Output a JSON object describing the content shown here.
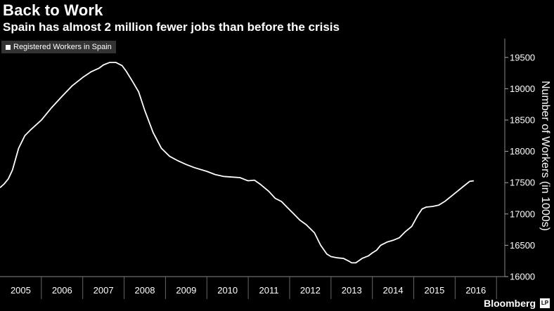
{
  "header": {
    "title": "Back to Work",
    "subtitle": "Spain has almost 2 million fewer jobs than before the crisis"
  },
  "brand": {
    "name": "Bloomberg",
    "mark": "LP"
  },
  "colors": {
    "background": "#000000",
    "line": "#ffffff",
    "legend_bg": "#333333",
    "grid": "#444444"
  },
  "chart_data": {
    "type": "line",
    "title": "Back to Work",
    "subtitle": "Spain has almost 2 million fewer jobs than before the crisis",
    "ylabel": "Number of Workers (in 1000s)",
    "xlabel": "",
    "ylim": [
      16000,
      19800
    ],
    "xlim": [
      2005.0,
      2017.2
    ],
    "yticks": [
      16000,
      16500,
      17000,
      17500,
      18000,
      18500,
      19000,
      19500
    ],
    "xtick_labels": [
      "2005",
      "2006",
      "2007",
      "2008",
      "2009",
      "2010",
      "2011",
      "2012",
      "2013",
      "2014",
      "2015",
      "2016"
    ],
    "legend": {
      "position": "top-left",
      "entries": [
        "Registered Workers in Spain"
      ]
    },
    "grid": false,
    "series": [
      {
        "name": "Registered Workers in Spain",
        "x": [
          2005.0,
          2005.1,
          2005.2,
          2005.3,
          2005.45,
          2005.6,
          2005.75,
          2006.0,
          2006.25,
          2006.5,
          2006.75,
          2007.0,
          2007.2,
          2007.4,
          2007.5,
          2007.65,
          2007.8,
          2007.95,
          2008.05,
          2008.2,
          2008.35,
          2008.5,
          2008.7,
          2008.9,
          2009.1,
          2009.3,
          2009.5,
          2009.7,
          2010.0,
          2010.2,
          2010.4,
          2010.6,
          2010.8,
          2010.95,
          2011.0,
          2011.15,
          2011.3,
          2011.5,
          2011.65,
          2011.8,
          2011.95,
          2012.1,
          2012.25,
          2012.4,
          2012.6,
          2012.75,
          2012.9,
          2013.0,
          2013.15,
          2013.3,
          2013.45,
          2013.5,
          2013.6,
          2013.75,
          2013.9,
          2014.0,
          2014.1,
          2014.2,
          2014.35,
          2014.5,
          2014.65,
          2014.8,
          2014.95,
          2015.1,
          2015.2,
          2015.3,
          2015.45,
          2015.6,
          2015.75,
          2015.9,
          2016.05,
          2016.2,
          2016.35,
          2016.45
        ],
        "values": [
          17420,
          17480,
          17560,
          17700,
          18050,
          18250,
          18350,
          18500,
          18700,
          18880,
          19050,
          19180,
          19270,
          19330,
          19380,
          19420,
          19420,
          19370,
          19280,
          19120,
          18950,
          18650,
          18300,
          18050,
          17920,
          17850,
          17790,
          17740,
          17680,
          17630,
          17600,
          17590,
          17580,
          17540,
          17530,
          17540,
          17470,
          17360,
          17250,
          17200,
          17100,
          17000,
          16900,
          16830,
          16700,
          16500,
          16360,
          16320,
          16300,
          16290,
          16240,
          16220,
          16220,
          16290,
          16330,
          16380,
          16420,
          16500,
          16550,
          16580,
          16620,
          16720,
          16800,
          16980,
          17080,
          17110,
          17120,
          17140,
          17200,
          17280,
          17360,
          17440,
          17520,
          17530
        ]
      }
    ]
  }
}
